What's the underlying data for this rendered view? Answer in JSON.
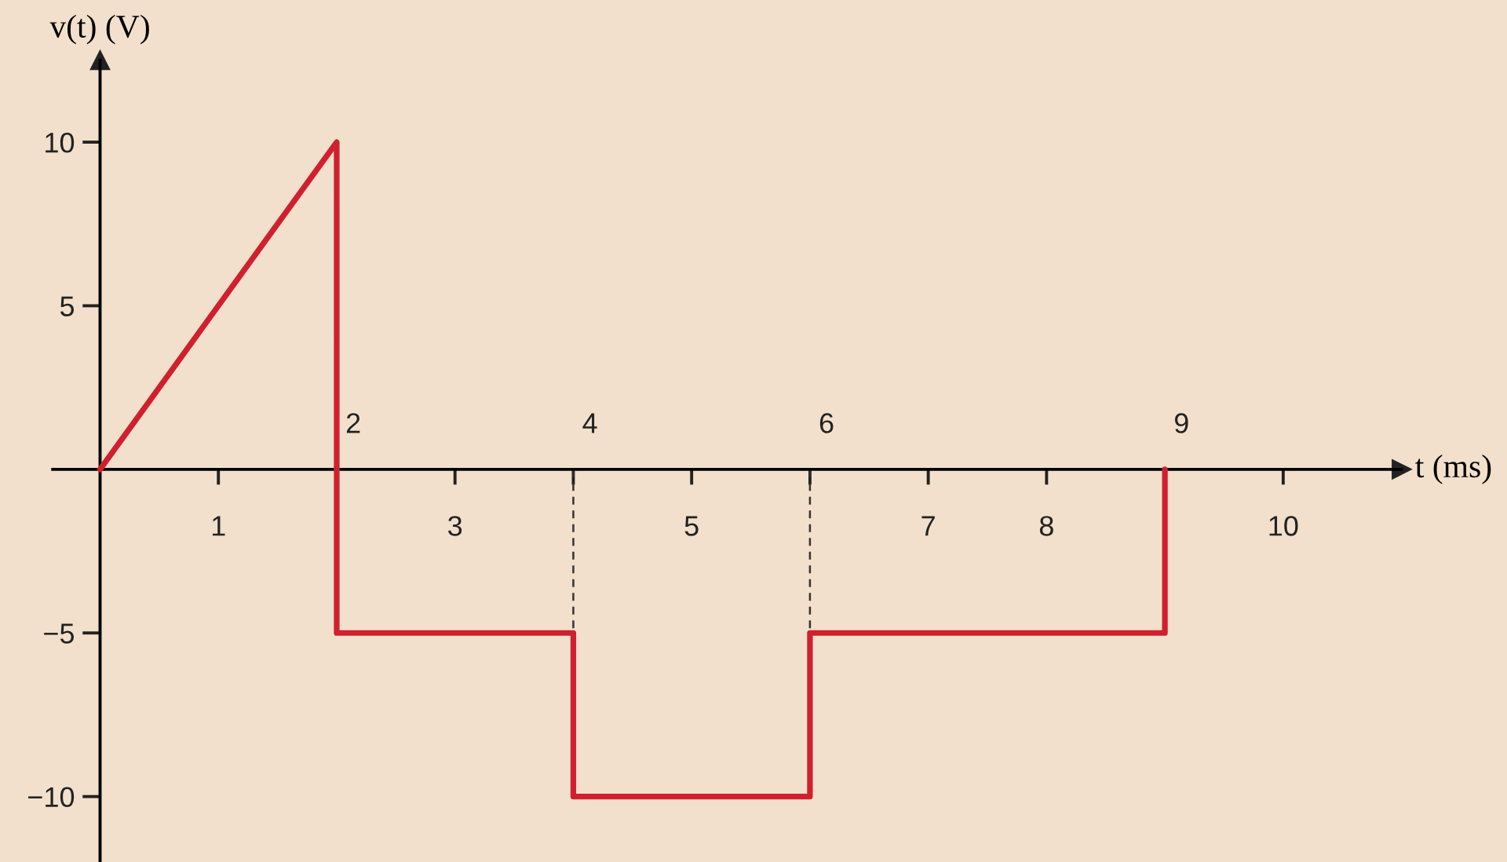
{
  "chart_data": {
    "type": "line",
    "xlabel": "t (ms)",
    "ylabel": "v(t) (V)",
    "series": [
      {
        "color": "#d0202e",
        "x": [
          0,
          2,
          2,
          4,
          4,
          6,
          6,
          9,
          9
        ],
        "values": [
          0,
          10,
          -5,
          -5,
          -10,
          -10,
          -5,
          -5,
          0
        ],
        "line_style": "solid"
      },
      {
        "color": "#333333",
        "x": [
          4,
          4
        ],
        "values": [
          0,
          -5
        ],
        "line_style": "dashed"
      },
      {
        "color": "#333333",
        "x": [
          6,
          6
        ],
        "values": [
          0,
          -5
        ],
        "line_style": "dashed"
      }
    ],
    "xlim": [
      -0.4,
      11
    ],
    "ylim": [
      -12,
      12.5
    ],
    "xticks": [
      1,
      {
        "value": 2,
        "label": null
      },
      3,
      {
        "value": 4,
        "label": null
      },
      5,
      {
        "value": 6,
        "label": null
      },
      7,
      8,
      {
        "value": 9,
        "label": null
      },
      10
    ],
    "annotations": [
      {
        "text": "2",
        "x": 2,
        "y": 0
      },
      {
        "text": "4",
        "x": 4,
        "y": 0
      },
      {
        "text": "6",
        "x": 6,
        "y": 0
      },
      {
        "text": "9",
        "x": 9,
        "y": 0
      }
    ],
    "yticks": [
      {
        "value": -10,
        "label": "−10"
      },
      {
        "value": -5,
        "label": "−5"
      },
      5,
      10
    ],
    "grid": false,
    "legend": false,
    "marker": "none"
  }
}
